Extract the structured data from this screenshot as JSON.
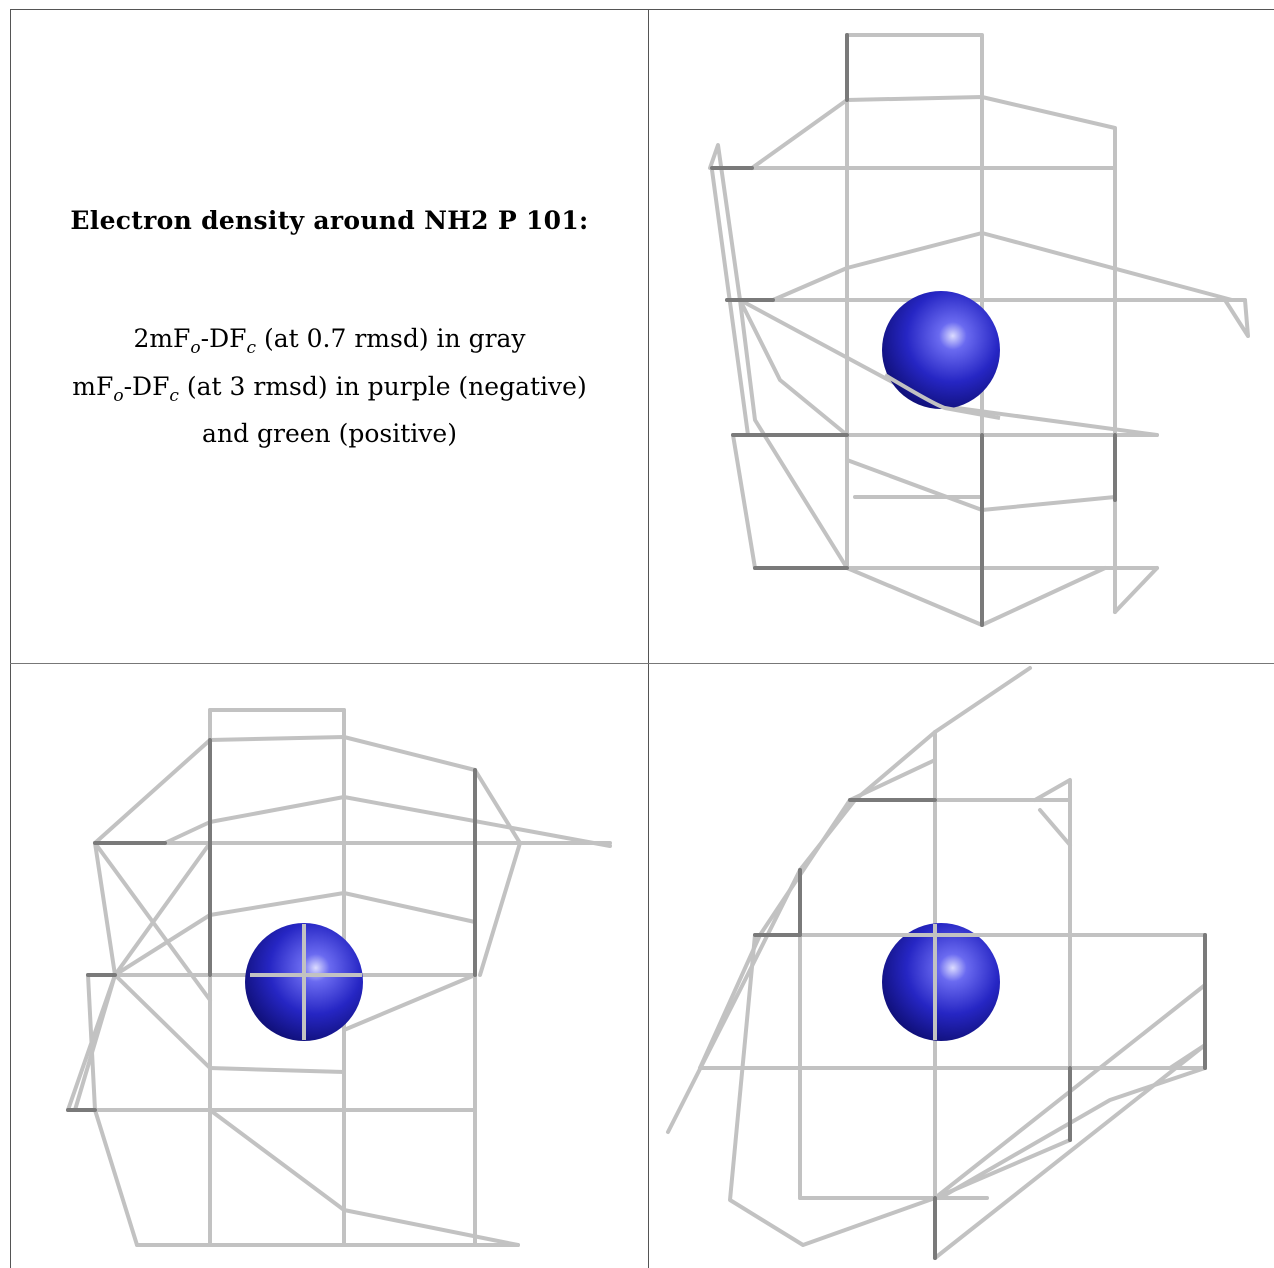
{
  "title": "Electron density around NH2 P 101:",
  "legend": {
    "line1": {
      "prefix": "2mF",
      "sub1": "o",
      "mid": "-DF",
      "sub2": "c",
      "suffix": " (at 0.7 rmsd) in gray"
    },
    "line2": {
      "prefix": "mF",
      "sub1": "o",
      "mid": "-DF",
      "sub2": "c",
      "suffix": " (at 3 rmsd) in purple (negative)"
    },
    "line3": "and green (positive)"
  },
  "colors": {
    "mesh": "#c4c4c4",
    "mesh_dark": "#7a7a7a",
    "atom": "#2a2acc",
    "atom_highlight": "#c8c8ff",
    "atom_edge": "#10106a",
    "border": "#555555"
  },
  "panels": [
    {
      "name": "view-1",
      "atom": "nitrogen-atom"
    },
    {
      "name": "view-2",
      "atom": "nitrogen-atom"
    },
    {
      "name": "view-3",
      "atom": "nitrogen-atom"
    }
  ]
}
